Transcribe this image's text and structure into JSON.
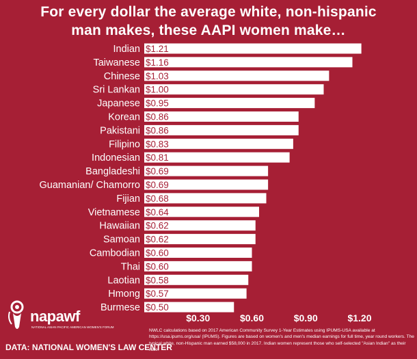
{
  "title_lines": [
    "For every dollar the average white, non-hispanic",
    "man makes, these AAPI women make…"
  ],
  "logo": {
    "name": "napawf",
    "subtitle": "NATIONAL ASIAN PACIFIC AMERICAN WOMEN'S FORUM"
  },
  "source": "DATA: NATIONAL WOMEN'S LAW CENTER",
  "footnote": "NWLC calculations based on 2017 American Community Survey 1-Year Estimates using IPUMS-USA available at https://usa.ipums.org/usa/ (IPUMS). Figures are based on women's and men's median earnings for full time, year round workers. The typical white, non-Hispanic man earned $58,000 in 2017. Indian women represent those who self-selected \"Asian Indian\" as their race.",
  "colors": {
    "background": "#a61f35",
    "bar": "#ffffff",
    "value_text": "#a61f35"
  },
  "chart_data": {
    "type": "bar",
    "orientation": "horizontal",
    "categories": [
      "Indian",
      "Taiwanese",
      "Chinese",
      "Sri Lankan",
      "Japanese",
      "Korean",
      "Pakistani",
      "Filipino",
      "Indonesian",
      "Bangladeshi",
      "Guamanian/ Chamorro",
      "Fijian",
      "Vietnamese",
      "Hawaiian",
      "Samoan",
      "Cambodian",
      "Thai",
      "Laotian",
      "Hmong",
      "Burmese"
    ],
    "values": [
      1.21,
      1.16,
      1.03,
      1.0,
      0.95,
      0.86,
      0.86,
      0.83,
      0.81,
      0.69,
      0.69,
      0.68,
      0.64,
      0.62,
      0.62,
      0.6,
      0.6,
      0.58,
      0.57,
      0.5
    ],
    "value_labels": [
      "$1.21",
      "$1.16",
      "$1.03",
      "$1.00",
      "$0.95",
      "$0.86",
      "$0.86",
      "$0.83",
      "$0.81",
      "$0.69",
      "$0.69",
      "$0.68",
      "$0.64",
      "$0.62",
      "$0.62",
      "$0.60",
      "$0.60",
      "$0.58",
      "$0.57",
      "$0.50"
    ],
    "xticks": [
      0.3,
      0.6,
      0.9,
      1.2
    ],
    "xtick_labels": [
      "$0.30",
      "$0.60",
      "$0.90",
      "$1.20"
    ],
    "xlim": [
      0,
      1.24
    ],
    "grid": false,
    "legend": "none"
  }
}
